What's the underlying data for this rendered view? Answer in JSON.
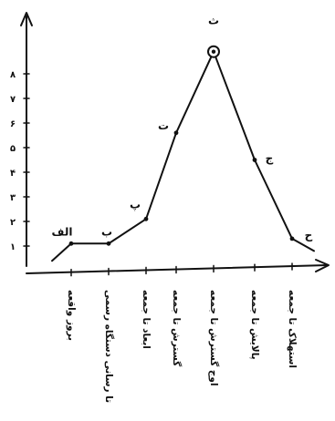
{
  "diagram": {
    "y_axis": {
      "ticks": [
        "١",
        "٢",
        "٣",
        "۴",
        "۵",
        "۶",
        "٧",
        "٨"
      ]
    },
    "points": [
      {
        "label": "الف",
        "value": 1.1
      },
      {
        "label": "ب",
        "value": 1.1
      },
      {
        "label": "پ",
        "value": 2.1
      },
      {
        "label": "ت",
        "value": 5.6
      },
      {
        "label": "ث",
        "value": 8.9
      },
      {
        "label": "ج",
        "value": 4.5
      },
      {
        "label": "ح",
        "value": 1.3
      }
    ],
    "stages": [
      {
        "lines": [
          "بروز واقعه"
        ]
      },
      {
        "lines": [
          "تا رسانی دستگاه رسمی"
        ]
      },
      {
        "lines": [
          "ابعاد تا جمعه"
        ]
      },
      {
        "lines": [
          "گسترش تا جمعه"
        ]
      },
      {
        "lines": [
          "اوج گسترش تا جمعه"
        ]
      },
      {
        "lines": [
          "پالایش تا جمعه"
        ]
      },
      {
        "lines": [
          "استهلاک تا جمعه"
        ]
      }
    ]
  }
}
